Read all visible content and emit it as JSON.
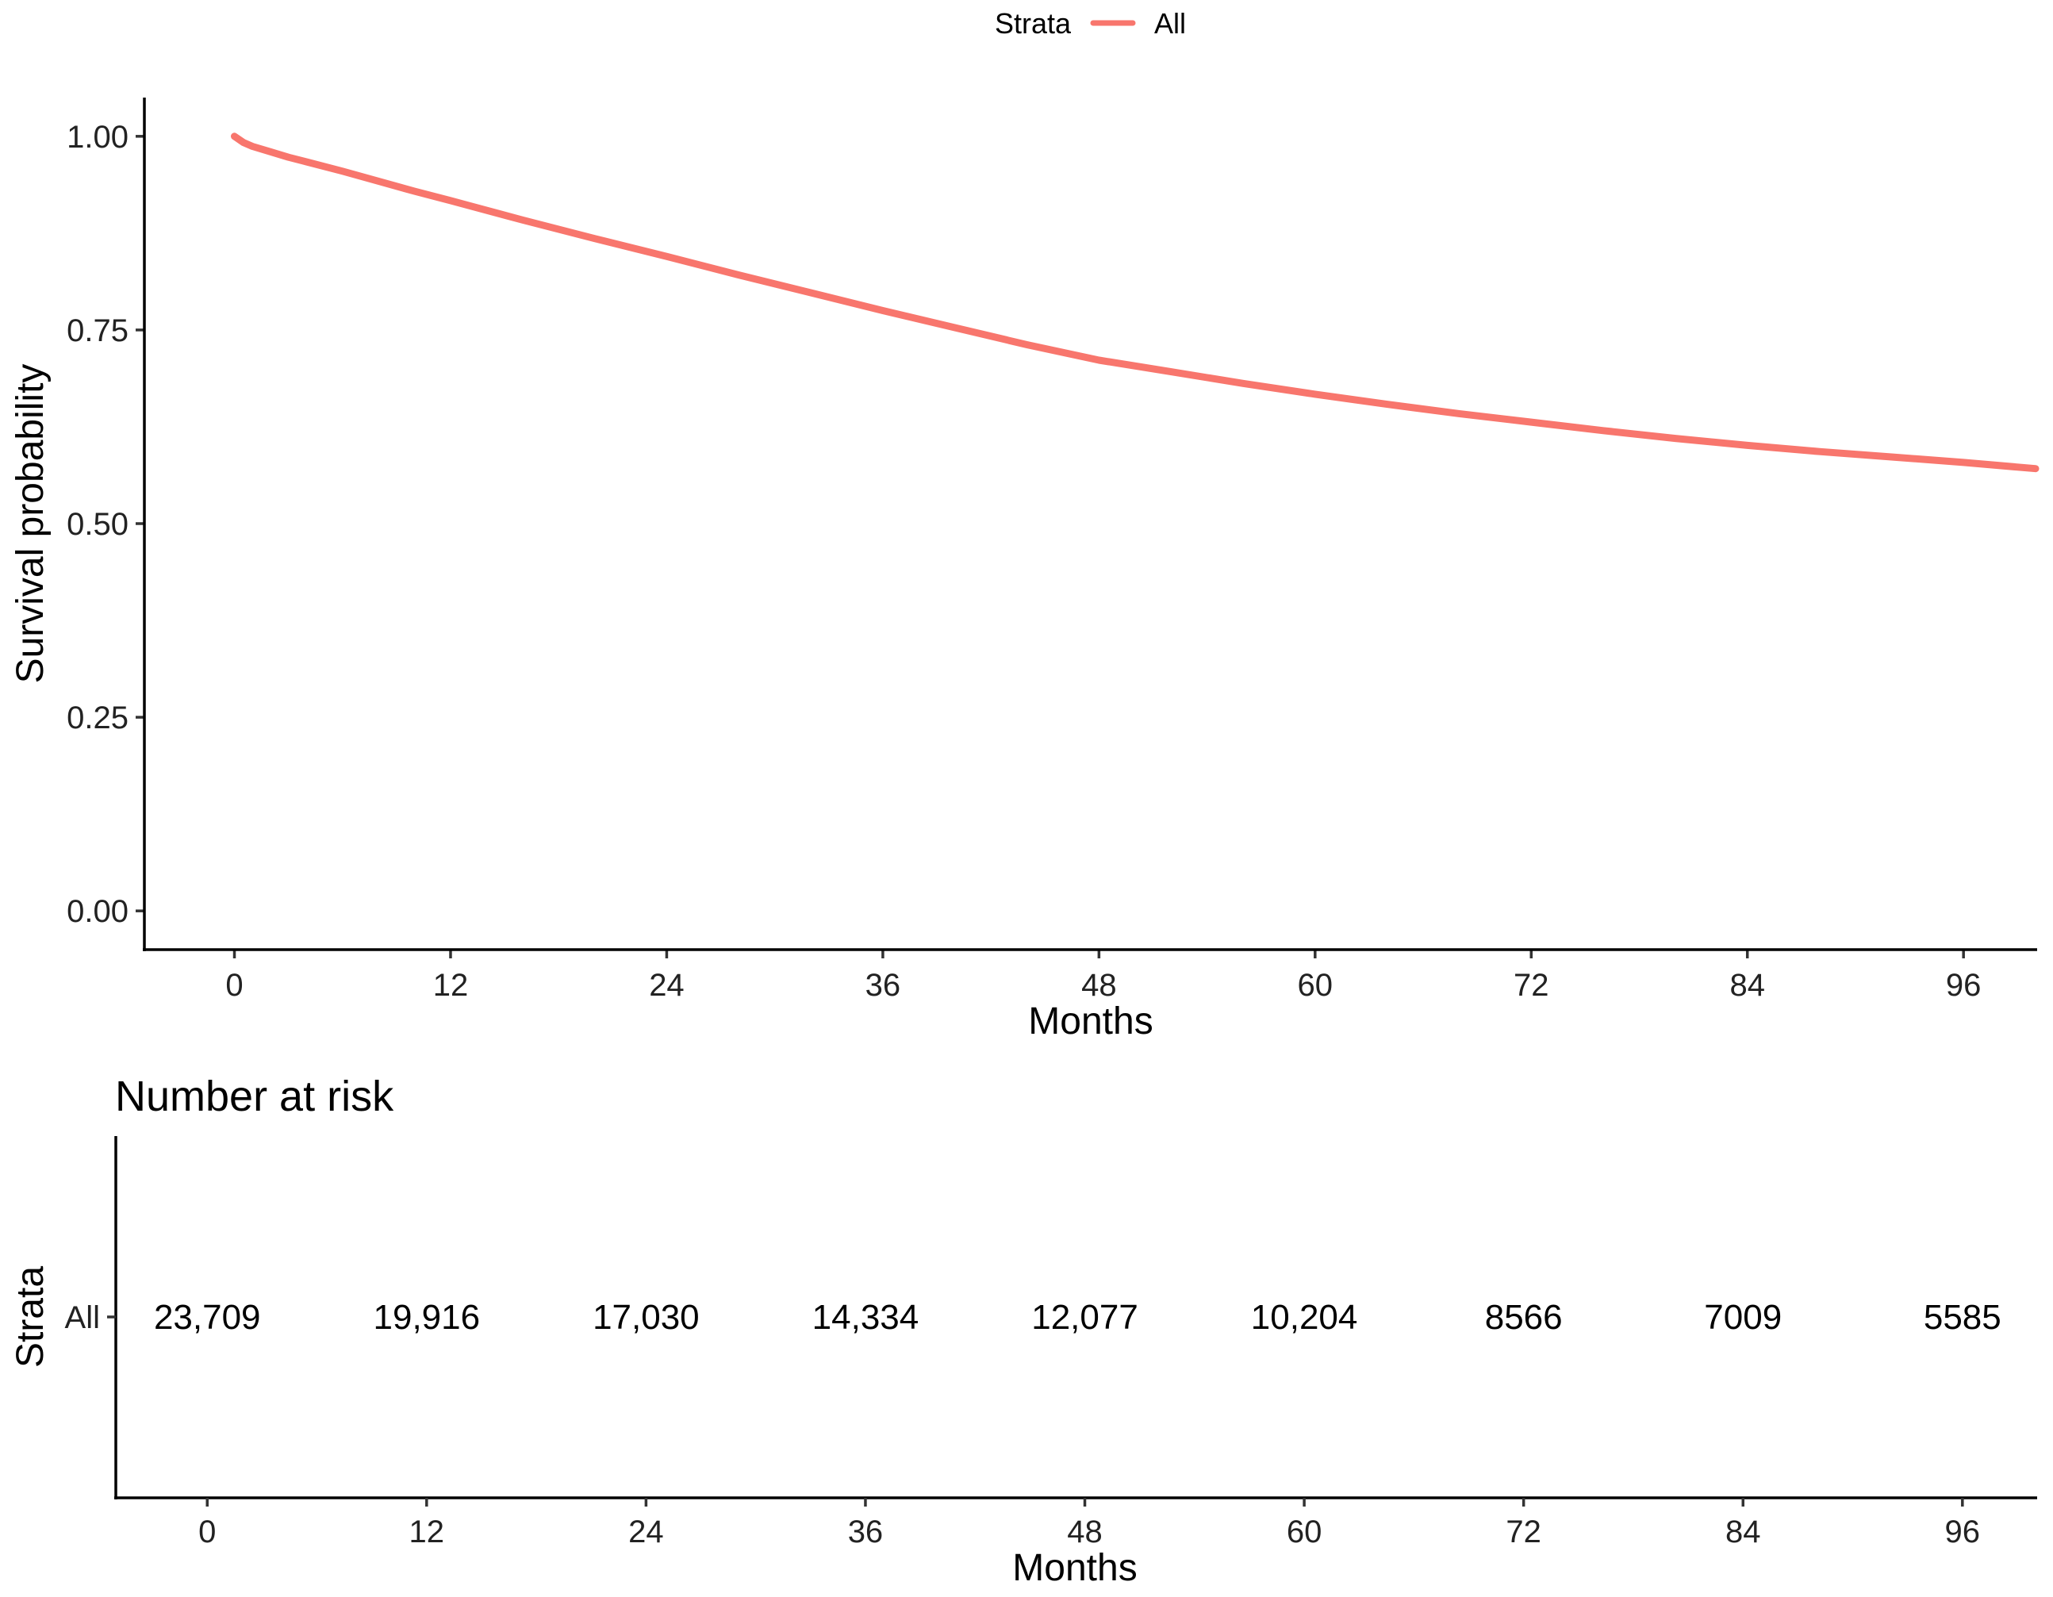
{
  "chart_data": [
    {
      "type": "line",
      "legend": {
        "title": "Strata",
        "position": "top",
        "entries": [
          "All"
        ]
      },
      "series": [
        {
          "name": "All",
          "color": "#F8766D",
          "x": [
            0,
            0.5,
            1,
            2,
            3,
            4,
            6,
            8,
            10,
            12,
            16,
            20,
            24,
            28,
            32,
            36,
            40,
            44,
            48,
            52,
            56,
            60,
            64,
            68,
            72,
            76,
            80,
            84,
            88,
            92,
            96,
            100
          ],
          "y": [
            1.0,
            0.992,
            0.987,
            0.98,
            0.973,
            0.967,
            0.955,
            0.942,
            0.929,
            0.917,
            0.892,
            0.868,
            0.845,
            0.821,
            0.798,
            0.775,
            0.753,
            0.731,
            0.711,
            0.696,
            0.681,
            0.667,
            0.654,
            0.642,
            0.631,
            0.62,
            0.61,
            0.601,
            0.593,
            0.586,
            0.579,
            0.571
          ]
        }
      ],
      "xlabel": "Months",
      "ylabel": "Survival probability",
      "xlim": [
        -5,
        100
      ],
      "ylim": [
        -0.05,
        1.05
      ],
      "xticks": [
        0,
        12,
        24,
        36,
        48,
        60,
        72,
        84,
        96
      ],
      "yticks": [
        0,
        0.25,
        0.5,
        0.75,
        1.0
      ],
      "ytick_labels": [
        "0.00",
        "0.25",
        "0.50",
        "0.75",
        "1.00"
      ],
      "grid": false
    },
    {
      "type": "table",
      "title": "Number at risk",
      "xlabel": "Months",
      "ylabel": "Strata",
      "row_label": "All",
      "row_color": "#F8766D",
      "xticks": [
        0,
        12,
        24,
        36,
        48,
        60,
        72,
        84,
        96
      ],
      "xlim": [
        -5,
        100
      ],
      "values": [
        "23,709",
        "19,916",
        "17,030",
        "14,334",
        "12,077",
        "10,204",
        "8566",
        "7009",
        "5585"
      ]
    }
  ]
}
